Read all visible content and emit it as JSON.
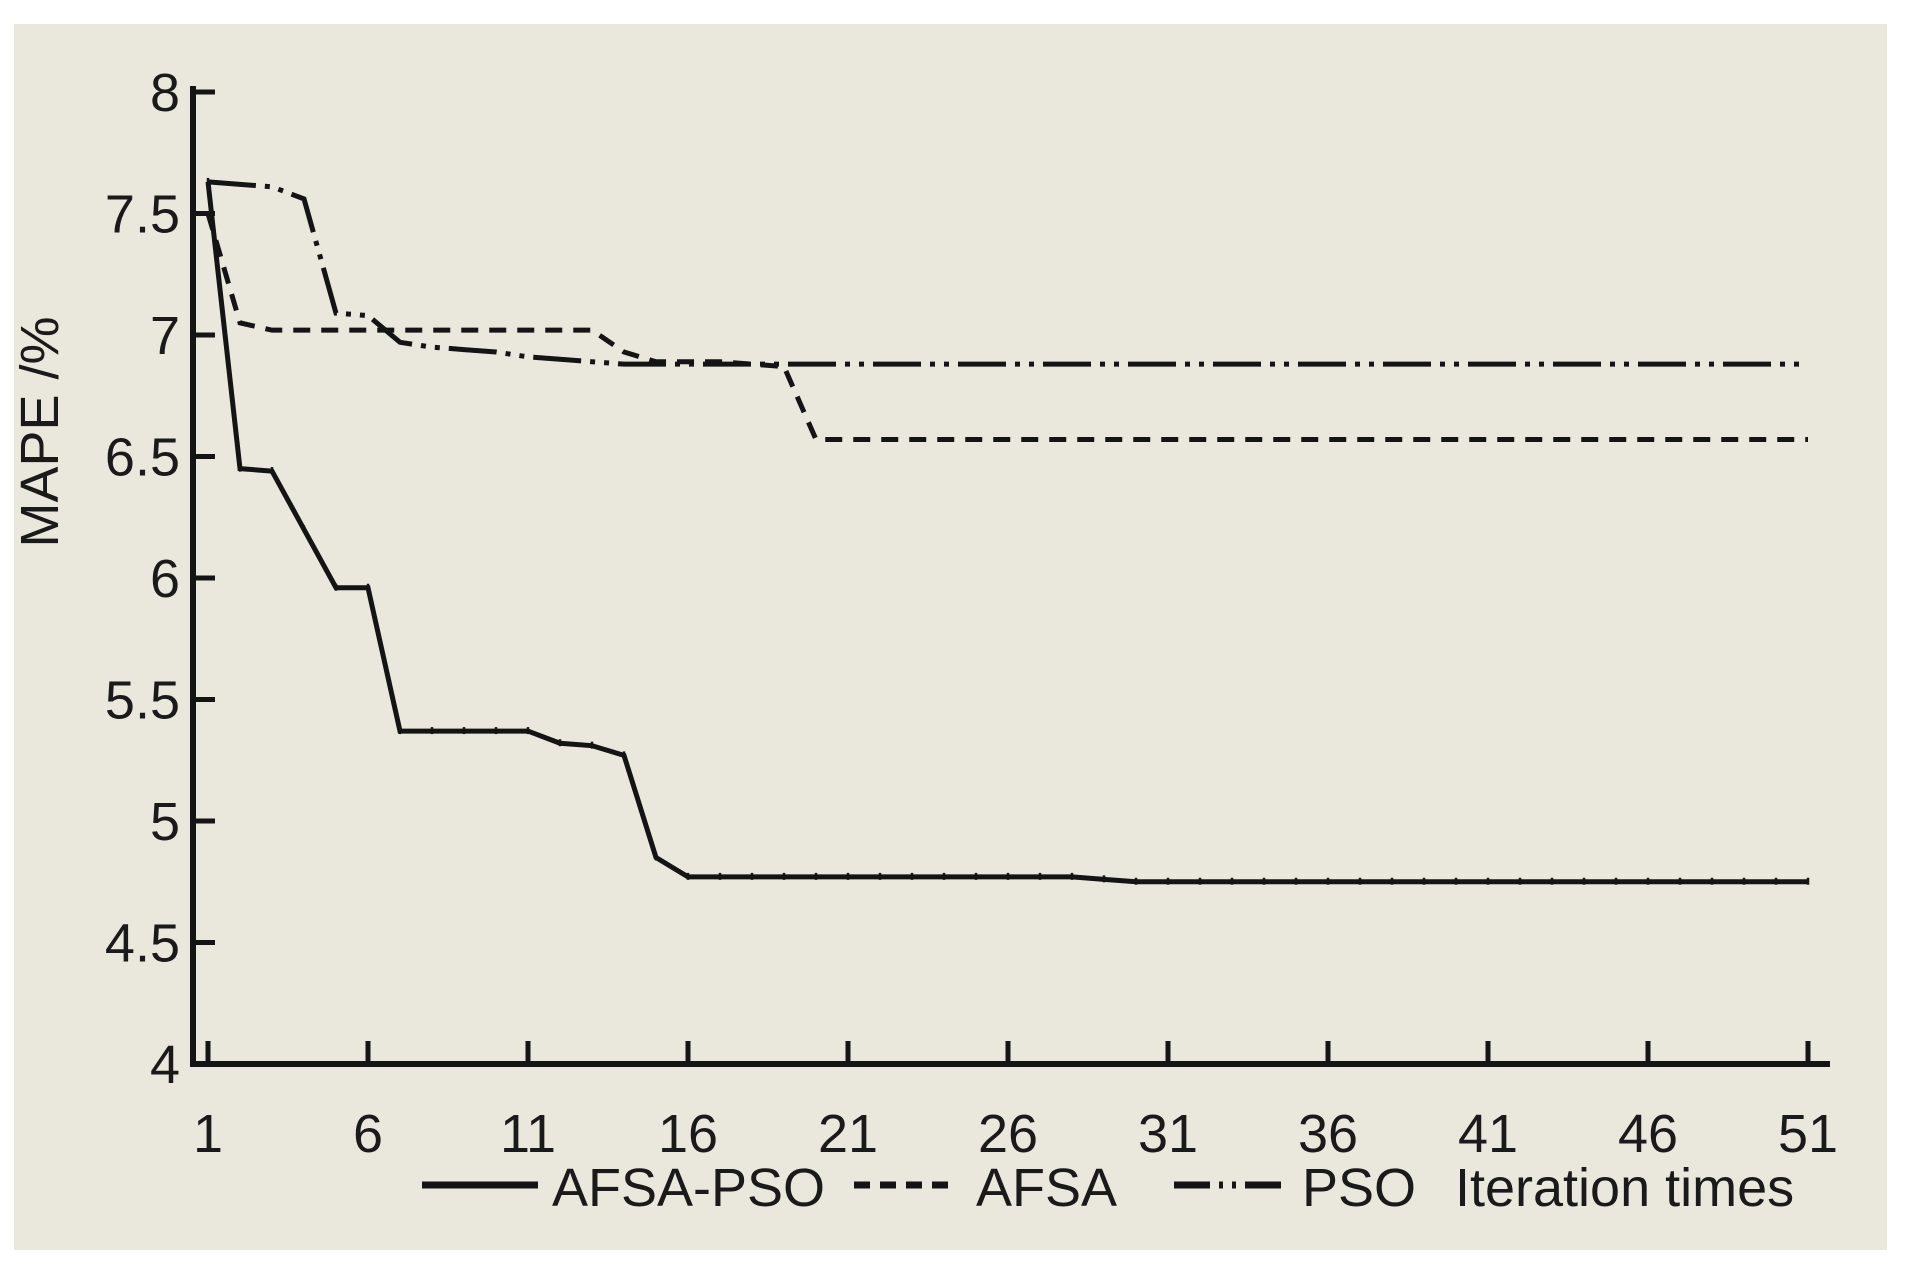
{
  "figure": {
    "panel_background": "#eae7dc",
    "outer_background": "#ffffff",
    "line_color": "#141414",
    "text_color": "#1a1a1a"
  },
  "chart_data": {
    "type": "line",
    "title": "",
    "xlabel": "Iteration times",
    "ylabel": "MAPE /%",
    "xlim": [
      1,
      51
    ],
    "ylim": [
      4,
      8
    ],
    "grid": false,
    "legend_position": "bottom",
    "x_ticks": [
      1,
      6,
      11,
      16,
      21,
      26,
      31,
      36,
      41,
      46,
      51
    ],
    "y_ticks": [
      8,
      7.5,
      7,
      6.5,
      6,
      5.5,
      5,
      4.5,
      4
    ],
    "x": [
      1,
      2,
      3,
      4,
      5,
      6,
      7,
      8,
      9,
      10,
      11,
      12,
      13,
      14,
      15,
      16,
      17,
      18,
      19,
      20,
      21,
      22,
      23,
      24,
      25,
      26,
      27,
      28,
      29,
      30,
      31,
      32,
      33,
      34,
      35,
      36,
      37,
      38,
      39,
      40,
      41,
      42,
      43,
      44,
      45,
      46,
      47,
      48,
      49,
      50,
      51
    ],
    "series": [
      {
        "name": "PSO",
        "style": "dash-dot-dot",
        "markers": "none",
        "values": [
          7.63,
          7.62,
          7.61,
          7.56,
          7.09,
          7.08,
          6.97,
          6.95,
          6.94,
          6.93,
          6.91,
          6.9,
          6.89,
          6.88,
          6.88,
          6.88,
          6.88,
          6.88,
          6.88,
          6.88,
          6.88,
          6.88,
          6.88,
          6.88,
          6.88,
          6.88,
          6.88,
          6.88,
          6.88,
          6.88,
          6.88,
          6.88,
          6.88,
          6.88,
          6.88,
          6.88,
          6.88,
          6.88,
          6.88,
          6.88,
          6.88,
          6.88,
          6.88,
          6.88,
          6.88,
          6.88,
          6.88,
          6.88,
          6.88,
          6.88,
          6.88
        ]
      },
      {
        "name": "AFSA",
        "style": "dashed",
        "markers": "none",
        "values": [
          7.5,
          7.05,
          7.02,
          7.02,
          7.02,
          7.02,
          7.02,
          7.02,
          7.02,
          7.02,
          7.02,
          7.02,
          7.02,
          6.93,
          6.89,
          6.89,
          6.89,
          6.88,
          6.87,
          6.57,
          6.57,
          6.57,
          6.57,
          6.57,
          6.57,
          6.57,
          6.57,
          6.57,
          6.57,
          6.57,
          6.57,
          6.57,
          6.57,
          6.57,
          6.57,
          6.57,
          6.57,
          6.57,
          6.57,
          6.57,
          6.57,
          6.57,
          6.57,
          6.57,
          6.57,
          6.57,
          6.57,
          6.57,
          6.57,
          6.57,
          6.57
        ]
      },
      {
        "name": "AFSA-PSO",
        "style": "solid",
        "markers": "tick",
        "values": [
          7.63,
          6.45,
          6.44,
          6.2,
          5.96,
          5.96,
          5.37,
          5.37,
          5.37,
          5.37,
          5.37,
          5.32,
          5.31,
          5.27,
          4.85,
          4.77,
          4.77,
          4.77,
          4.77,
          4.77,
          4.77,
          4.77,
          4.77,
          4.77,
          4.77,
          4.77,
          4.77,
          4.77,
          4.76,
          4.75,
          4.75,
          4.75,
          4.75,
          4.75,
          4.75,
          4.75,
          4.75,
          4.75,
          4.75,
          4.75,
          4.75,
          4.75,
          4.75,
          4.75,
          4.75,
          4.75,
          4.75,
          4.75,
          4.75,
          4.75,
          4.75
        ]
      }
    ]
  },
  "legend": {
    "items": [
      {
        "label": "AFSA-PSO",
        "style": "solid"
      },
      {
        "label": "AFSA",
        "style": "dashed"
      },
      {
        "label": "PSO",
        "style": "dash-dot-dot"
      }
    ],
    "axis_caption": "Iteration times"
  }
}
